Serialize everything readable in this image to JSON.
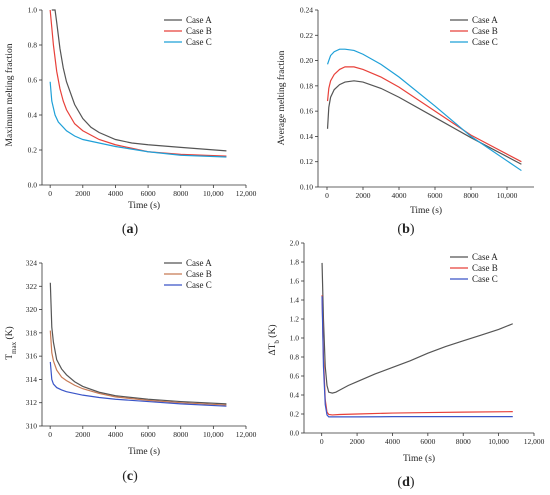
{
  "chart_data": [
    {
      "type": "line",
      "panel_label": "(a)",
      "xlabel": "Time (s)",
      "ylabel": "Maximum melting fraction",
      "xlim": [
        -500,
        12000
      ],
      "ylim": [
        0,
        1.0
      ],
      "xticks": [
        0,
        2000,
        4000,
        6000,
        8000,
        10000,
        12000
      ],
      "xtick_labels": [
        "0",
        "2000",
        "4000",
        "6000",
        "8000",
        "10,000",
        "12,000"
      ],
      "yticks": [
        0,
        0.2,
        0.4,
        0.6,
        0.8,
        1.0
      ],
      "ytick_labels": [
        "0.0",
        "0.2",
        "0.4",
        "0.6",
        "0.8",
        "1.0"
      ],
      "legend_position": "top-right",
      "series": [
        {
          "name": "Case A",
          "color": "#555555",
          "x": [
            100,
            300,
            400,
            600,
            800,
            1000,
            1500,
            2000,
            2500,
            3000,
            4000,
            5000,
            6000,
            8000,
            10800
          ],
          "y": [
            1.0,
            1.0,
            0.93,
            0.78,
            0.67,
            0.59,
            0.46,
            0.38,
            0.33,
            0.3,
            0.26,
            0.24,
            0.23,
            0.215,
            0.195
          ]
        },
        {
          "name": "Case B",
          "color": "#e8413a",
          "x": [
            0,
            100,
            200,
            400,
            600,
            800,
            1000,
            1500,
            2000,
            3000,
            4000,
            5000,
            6000,
            8000,
            10800
          ],
          "y": [
            1.0,
            0.9,
            0.8,
            0.65,
            0.55,
            0.48,
            0.43,
            0.35,
            0.31,
            0.26,
            0.23,
            0.21,
            0.19,
            0.175,
            0.165
          ]
        },
        {
          "name": "Case C",
          "color": "#1fa0d8",
          "x": [
            0,
            100,
            300,
            500,
            1000,
            1500,
            2000,
            3000,
            4000,
            6000,
            8000,
            10800
          ],
          "y": [
            0.59,
            0.48,
            0.4,
            0.36,
            0.31,
            0.28,
            0.26,
            0.24,
            0.22,
            0.19,
            0.17,
            0.16
          ]
        }
      ]
    },
    {
      "type": "line",
      "panel_label": "(b)",
      "xlabel": "Time (s)",
      "ylabel": "Average melting fraction",
      "xlim": [
        -500,
        11500
      ],
      "ylim": [
        0.1,
        0.24
      ],
      "xticks": [
        0,
        2000,
        4000,
        6000,
        8000,
        10000
      ],
      "xtick_labels": [
        "0",
        "2000",
        "4000",
        "6000",
        "8000",
        "10,000"
      ],
      "yticks": [
        0.1,
        0.12,
        0.14,
        0.16,
        0.18,
        0.2,
        0.22,
        0.24
      ],
      "ytick_labels": [
        "0.10",
        "0.12",
        "0.14",
        "0.16",
        "0.18",
        "0.20",
        "0.22",
        "0.24"
      ],
      "legend_position": "top-right",
      "series": [
        {
          "name": "Case A",
          "color": "#555555",
          "x": [
            30,
            100,
            200,
            400,
            700,
            1000,
            1500,
            2000,
            3000,
            4000,
            6000,
            8000,
            10800
          ],
          "y": [
            0.146,
            0.163,
            0.171,
            0.177,
            0.181,
            0.183,
            0.184,
            0.183,
            0.178,
            0.171,
            0.155,
            0.139,
            0.118
          ]
        },
        {
          "name": "Case B",
          "color": "#e8413a",
          "x": [
            30,
            100,
            200,
            400,
            700,
            1000,
            1500,
            2000,
            3000,
            4000,
            6000,
            8000,
            10800
          ],
          "y": [
            0.168,
            0.178,
            0.184,
            0.189,
            0.193,
            0.195,
            0.195,
            0.193,
            0.187,
            0.179,
            0.16,
            0.141,
            0.12
          ]
        },
        {
          "name": "Case C",
          "color": "#1fa0d8",
          "x": [
            30,
            100,
            200,
            400,
            700,
            1000,
            1500,
            2000,
            3000,
            4000,
            6000,
            8000,
            10800
          ],
          "y": [
            0.197,
            0.2,
            0.204,
            0.207,
            0.209,
            0.209,
            0.208,
            0.205,
            0.197,
            0.187,
            0.164,
            0.14,
            0.113
          ]
        }
      ]
    },
    {
      "type": "line",
      "panel_label": "(c)",
      "xlabel": "Time (s)",
      "ylabel_main": "T",
      "ylabel_sub": "max",
      "ylabel_unit": " (K)",
      "xlim": [
        -500,
        12000
      ],
      "ylim": [
        310,
        324
      ],
      "xticks": [
        0,
        2000,
        4000,
        6000,
        8000,
        10000,
        12000
      ],
      "xtick_labels": [
        "0",
        "2000",
        "4000",
        "6000",
        "8000",
        "10,000",
        "12,000"
      ],
      "yticks": [
        310,
        312,
        314,
        316,
        318,
        320,
        322,
        324
      ],
      "ytick_labels": [
        "310",
        "312",
        "314",
        "316",
        "318",
        "320",
        "322",
        "324"
      ],
      "legend_position": "top-right",
      "series": [
        {
          "name": "Case A",
          "color": "#555555",
          "x": [
            10,
            100,
            200,
            400,
            700,
            1000,
            1500,
            2000,
            3000,
            4000,
            6000,
            8000,
            10800
          ],
          "y": [
            322.3,
            318.5,
            317.2,
            315.7,
            314.9,
            314.4,
            313.8,
            313.4,
            312.9,
            312.6,
            312.3,
            312.1,
            311.9
          ]
        },
        {
          "name": "Case B",
          "color": "#c77a55",
          "x": [
            10,
            100,
            200,
            400,
            700,
            1000,
            1500,
            2000,
            3000,
            4000,
            6000,
            8000,
            10800
          ],
          "y": [
            318.2,
            316.3,
            315.6,
            314.8,
            314.2,
            313.9,
            313.5,
            313.2,
            312.8,
            312.5,
            312.2,
            312.0,
            311.8
          ]
        },
        {
          "name": "Case C",
          "color": "#3a55c8",
          "x": [
            10,
            100,
            200,
            400,
            700,
            1000,
            1500,
            2000,
            3000,
            4000,
            6000,
            8000,
            10800
          ],
          "y": [
            315.5,
            314.0,
            313.6,
            313.3,
            313.1,
            312.95,
            312.8,
            312.65,
            312.45,
            312.3,
            312.1,
            311.9,
            311.7
          ]
        }
      ]
    },
    {
      "type": "line",
      "panel_label": "(d)",
      "xlabel": "Time (s)",
      "ylabel_main": "ΔT",
      "ylabel_sub": "b",
      "ylabel_unit": " (K)",
      "xlim": [
        -1000,
        12000
      ],
      "ylim": [
        0.0,
        2.0
      ],
      "xticks": [
        0,
        2000,
        4000,
        6000,
        8000,
        10000,
        12000
      ],
      "xtick_labels": [
        "0",
        "2000",
        "4000",
        "6000",
        "8000",
        "10,000",
        "12,000"
      ],
      "yticks": [
        0.0,
        0.2,
        0.4,
        0.6,
        0.8,
        1.0,
        1.2,
        1.4,
        1.6,
        1.8,
        2.0
      ],
      "ytick_labels": [
        "0.0",
        "0.2",
        "0.4",
        "0.6",
        "0.8",
        "1.0",
        "1.2",
        "1.4",
        "1.6",
        "1.8",
        "2.0"
      ],
      "legend_position": "top-right",
      "series": [
        {
          "name": "Case A",
          "color": "#555555",
          "x": [
            20,
            100,
            200,
            300,
            400,
            600,
            800,
            1000,
            1500,
            2000,
            3000,
            4000,
            5000,
            6000,
            7000,
            8000,
            9000,
            10000,
            10800
          ],
          "y": [
            1.79,
            1.2,
            0.7,
            0.5,
            0.43,
            0.42,
            0.43,
            0.45,
            0.5,
            0.54,
            0.62,
            0.69,
            0.76,
            0.84,
            0.91,
            0.97,
            1.03,
            1.09,
            1.15
          ]
        },
        {
          "name": "Case B",
          "color": "#e8413a",
          "x": [
            20,
            100,
            200,
            300,
            400,
            600,
            1000,
            2000,
            4000,
            6000,
            8000,
            10800
          ],
          "y": [
            1.45,
            0.8,
            0.35,
            0.22,
            0.195,
            0.19,
            0.195,
            0.2,
            0.21,
            0.215,
            0.22,
            0.225
          ]
        },
        {
          "name": "Case C",
          "color": "#3a55c8",
          "x": [
            20,
            100,
            200,
            300,
            400,
            600,
            1000,
            2000,
            4000,
            6000,
            8000,
            10800
          ],
          "y": [
            1.44,
            0.7,
            0.3,
            0.19,
            0.17,
            0.17,
            0.17,
            0.17,
            0.172,
            0.172,
            0.172,
            0.172
          ]
        }
      ]
    }
  ]
}
